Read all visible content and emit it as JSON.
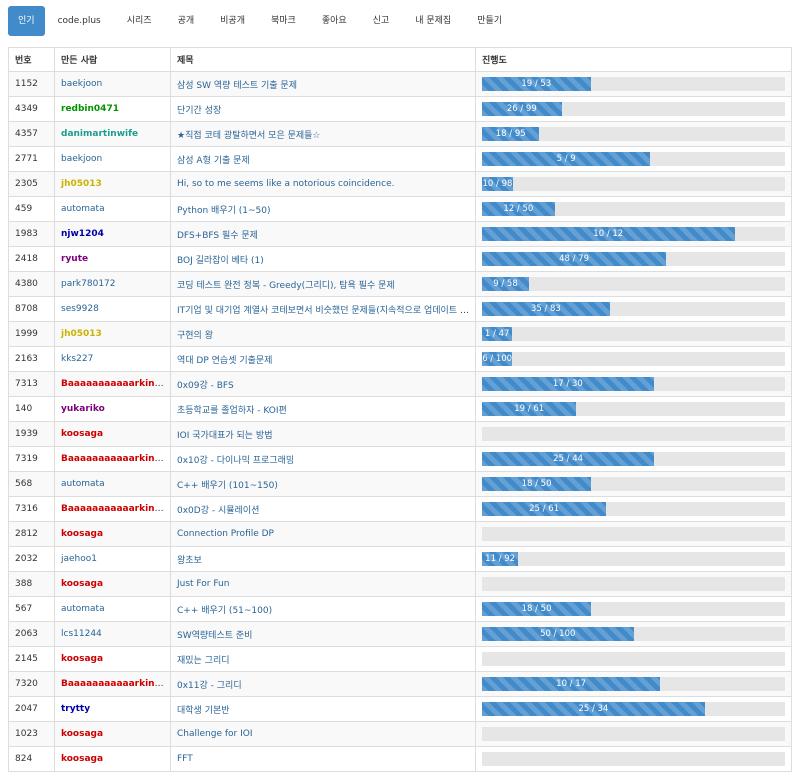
{
  "tabs": [
    "인기",
    "code.plus",
    "시리즈",
    "공개",
    "비공개",
    "북마크",
    "좋아요",
    "신고",
    "내 문제집",
    "만들기"
  ],
  "table": {
    "headers": [
      "번호",
      "만든 사람",
      "제목",
      "진행도"
    ],
    "rows": [
      {
        "id": "1152",
        "maker": "baekjoon",
        "maker_color": "#2a6496",
        "bold": false,
        "title": "삼성 SW 역량 테스트 기출 문제",
        "solved": 19,
        "total": 53,
        "progress": "19 / 53"
      },
      {
        "id": "4349",
        "maker": "redbin0471",
        "maker_color": "#009400",
        "bold": true,
        "title": "단기간 성장",
        "solved": 26,
        "total": 99,
        "progress": "26 / 99"
      },
      {
        "id": "4357",
        "maker": "danimartinwife",
        "maker_color": "#1a9e8f",
        "bold": true,
        "title": "★직접 코테 광탈하면서 모은 문제들☆",
        "solved": 18,
        "total": 95,
        "progress": "18 / 95"
      },
      {
        "id": "2771",
        "maker": "baekjoon",
        "maker_color": "#2a6496",
        "bold": false,
        "title": "삼성 A형 기출 문제",
        "solved": 5,
        "total": 9,
        "progress": "5 / 9"
      },
      {
        "id": "2305",
        "maker": "jh05013",
        "maker_color": "#c9b200",
        "bold": true,
        "title": "Hi, so to me seems like a notorious coincidence.",
        "solved": 10,
        "total": 98,
        "progress": "10 / 98"
      },
      {
        "id": "459",
        "maker": "automata",
        "maker_color": "#2a6496",
        "bold": false,
        "title": "Python 배우기 (1~50)",
        "solved": 12,
        "total": 50,
        "progress": "12 / 50"
      },
      {
        "id": "1983",
        "maker": "njw1204",
        "maker_color": "#0000a8",
        "bold": true,
        "title": "DFS+BFS 필수 문제",
        "solved": 10,
        "total": 12,
        "progress": "10 / 12"
      },
      {
        "id": "2418",
        "maker": "ryute",
        "maker_color": "#7d007d",
        "bold": true,
        "title": "BOJ 길라잡이 베타 (1)",
        "solved": 48,
        "total": 79,
        "progress": "48 / 79"
      },
      {
        "id": "4380",
        "maker": "park780172",
        "maker_color": "#2a6496",
        "bold": false,
        "title": "코딩 테스트 완전 정복 - Greedy(그리디), 탐욕 필수 문제",
        "solved": 9,
        "total": 58,
        "progress": "9 / 58"
      },
      {
        "id": "8708",
        "maker": "ses9928",
        "maker_color": "#2a6496",
        "bold": false,
        "title": "IT기업 및 대기업 계열사 코테보면서 비슷했던 문제들(지속적으로 업데이트 중)",
        "solved": 35,
        "total": 83,
        "progress": "35 / 83"
      },
      {
        "id": "1999",
        "maker": "jh05013",
        "maker_color": "#c9b200",
        "bold": true,
        "title": "구현의 왕",
        "solved": 1,
        "total": 47,
        "progress": "1 / 47"
      },
      {
        "id": "2163",
        "maker": "kks227",
        "maker_color": "#2a6496",
        "bold": false,
        "title": "역대 DP 연습셋 기출문제",
        "solved": 6,
        "total": 100,
        "progress": "6 / 100"
      },
      {
        "id": "7313",
        "maker": "BaaaaaaaaaaarkingDog",
        "maker_color": "#cc0000",
        "bold": true,
        "title": "0x09강 - BFS",
        "solved": 17,
        "total": 30,
        "progress": "17 / 30"
      },
      {
        "id": "140",
        "maker": "yukariko",
        "maker_color": "#7d007d",
        "bold": true,
        "title": "초등학교를 졸업하자 - KOI편",
        "solved": 19,
        "total": 61,
        "progress": "19 / 61"
      },
      {
        "id": "1939",
        "maker": "koosaga",
        "maker_color": "#cc0000",
        "bold": true,
        "title": "IOI 국가대표가 되는 방법",
        "solved": 0,
        "total": 0,
        "progress": ""
      },
      {
        "id": "7319",
        "maker": "BaaaaaaaaaaarkingDog",
        "maker_color": "#cc0000",
        "bold": true,
        "title": "0x10강 - 다이나믹 프로그래밍",
        "solved": 25,
        "total": 44,
        "progress": "25 / 44"
      },
      {
        "id": "568",
        "maker": "automata",
        "maker_color": "#2a6496",
        "bold": false,
        "title": "C++ 배우기 (101~150)",
        "solved": 18,
        "total": 50,
        "progress": "18 / 50"
      },
      {
        "id": "7316",
        "maker": "BaaaaaaaaaaarkingDog",
        "maker_color": "#cc0000",
        "bold": true,
        "title": "0x0D강 - 시뮬레이션",
        "solved": 25,
        "total": 61,
        "progress": "25 / 61"
      },
      {
        "id": "2812",
        "maker": "koosaga",
        "maker_color": "#cc0000",
        "bold": true,
        "title": "Connection Profile DP",
        "solved": 0,
        "total": 0,
        "progress": ""
      },
      {
        "id": "2032",
        "maker": "jaehoo1",
        "maker_color": "#2a6496",
        "bold": false,
        "title": "왕초보",
        "solved": 11,
        "total": 92,
        "progress": "11 / 92"
      },
      {
        "id": "388",
        "maker": "koosaga",
        "maker_color": "#cc0000",
        "bold": true,
        "title": "Just For Fun",
        "solved": 0,
        "total": 0,
        "progress": ""
      },
      {
        "id": "567",
        "maker": "automata",
        "maker_color": "#2a6496",
        "bold": false,
        "title": "C++ 배우기 (51~100)",
        "solved": 18,
        "total": 50,
        "progress": "18 / 50"
      },
      {
        "id": "2063",
        "maker": "lcs11244",
        "maker_color": "#2a6496",
        "bold": false,
        "title": "SW역량테스트 준비",
        "solved": 50,
        "total": 100,
        "progress": "50 / 100"
      },
      {
        "id": "2145",
        "maker": "koosaga",
        "maker_color": "#cc0000",
        "bold": true,
        "title": "재밌는 그리디",
        "solved": 0,
        "total": 0,
        "progress": ""
      },
      {
        "id": "7320",
        "maker": "BaaaaaaaaaaarkingDog",
        "maker_color": "#cc0000",
        "bold": true,
        "title": "0x11강 - 그리디",
        "solved": 10,
        "total": 17,
        "progress": "10 / 17"
      },
      {
        "id": "2047",
        "maker": "trytty",
        "maker_color": "#0000a8",
        "bold": true,
        "title": "대학생 기본반",
        "solved": 25,
        "total": 34,
        "progress": "25 / 34"
      },
      {
        "id": "1023",
        "maker": "koosaga",
        "maker_color": "#cc0000",
        "bold": true,
        "title": "Challenge for IOI",
        "solved": 0,
        "total": 0,
        "progress": ""
      },
      {
        "id": "824",
        "maker": "koosaga",
        "maker_color": "#cc0000",
        "bold": true,
        "title": "FFT",
        "solved": 0,
        "total": 0,
        "progress": ""
      }
    ]
  }
}
